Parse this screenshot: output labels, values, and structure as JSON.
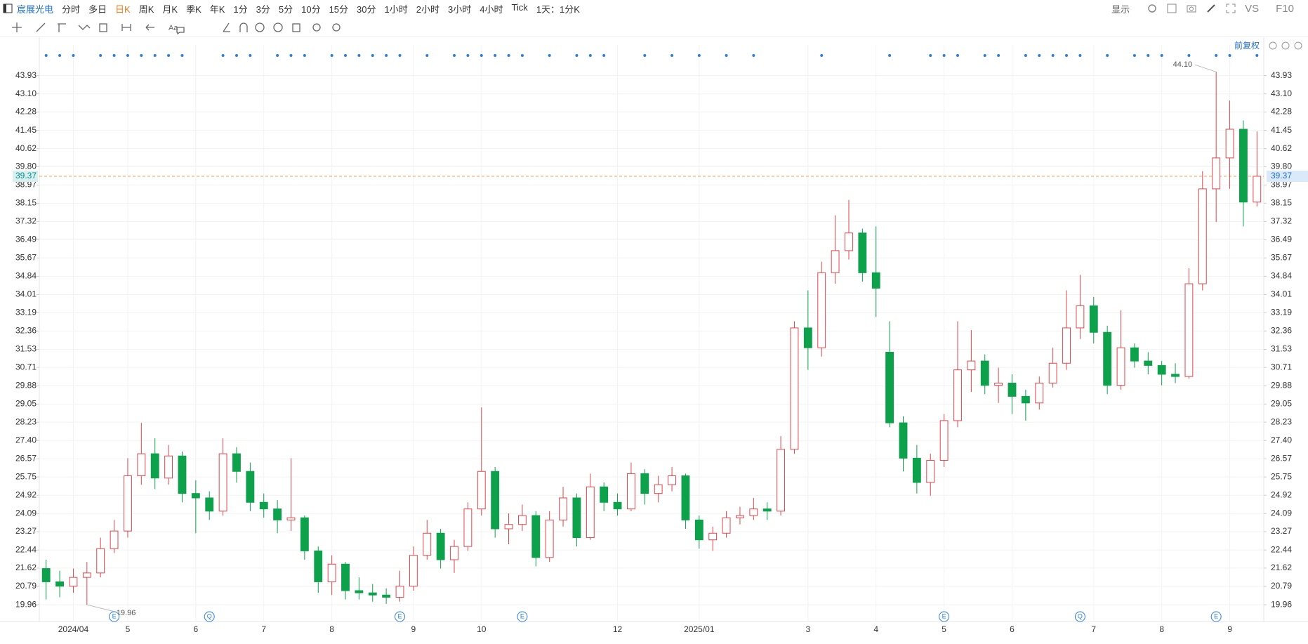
{
  "toolbar": {
    "stock": "宸展光电",
    "periods": [
      "分时",
      "多日",
      "日K",
      "周K",
      "月K",
      "季K",
      "年K",
      "1分",
      "3分",
      "5分",
      "10分",
      "15分",
      "30分",
      "1小时",
      "2小时",
      "3小时",
      "4小时",
      "Tick",
      "1天：1分K"
    ],
    "active": 2,
    "display": "显示",
    "vs": "VS",
    "f10": "F10",
    "adjust": "前复权"
  },
  "chart_data": {
    "type": "candlestick",
    "categories": [
      null,
      null,
      "2024/04",
      null,
      null,
      null,
      "5",
      null,
      null,
      null,
      null,
      "6",
      null,
      null,
      null,
      null,
      "7",
      null,
      null,
      null,
      null,
      "8",
      null,
      null,
      null,
      null,
      null,
      "9",
      null,
      null,
      null,
      null,
      "10",
      null,
      null,
      null,
      null,
      null,
      null,
      null,
      null,
      null,
      "12",
      null,
      null,
      null,
      null,
      null,
      "2025/01",
      null,
      null,
      null,
      null,
      null,
      null,
      null,
      "3",
      null,
      null,
      null,
      null,
      "4",
      null,
      null,
      null,
      null,
      "5",
      null,
      null,
      null,
      null,
      "6",
      null,
      null,
      null,
      null,
      null,
      "7",
      null,
      null,
      null,
      null,
      "8",
      null,
      null,
      null,
      null,
      "9",
      null,
      null
    ],
    "open": [
      21.6,
      21.0,
      20.8,
      21.2,
      21.4,
      22.5,
      23.3,
      25.8,
      26.8,
      25.7,
      26.7,
      25.0,
      24.8,
      24.2,
      26.8,
      26.0,
      24.6,
      24.3,
      23.8,
      23.9,
      22.4,
      21.0,
      21.8,
      20.6,
      20.5,
      20.4,
      20.3,
      20.8,
      22.2,
      23.2,
      22.0,
      22.6,
      24.3,
      26.0,
      23.4,
      23.6,
      24.0,
      22.1,
      23.8,
      24.8,
      23.0,
      25.3,
      24.6,
      24.3,
      25.9,
      25.0,
      25.4,
      25.8,
      23.8,
      22.9,
      23.2,
      23.9,
      24.0,
      24.3,
      24.2,
      27.0,
      32.5,
      31.6,
      35.0,
      36.0,
      36.8,
      35.0,
      31.4,
      28.2,
      26.6,
      25.5,
      26.5,
      28.3,
      30.6,
      31.0,
      29.9,
      30.0,
      29.4,
      29.1,
      30.0,
      30.9,
      32.5,
      33.5,
      32.3,
      29.9,
      31.6,
      31.0,
      30.8,
      30.4,
      30.3,
      34.5,
      38.8,
      40.2,
      41.5,
      38.2
    ],
    "high": [
      22.0,
      21.5,
      21.6,
      21.9,
      23.0,
      23.8,
      26.6,
      28.2,
      27.5,
      27.2,
      26.9,
      25.6,
      25.1,
      27.5,
      27.1,
      26.4,
      25.0,
      24.7,
      26.6,
      24.0,
      22.6,
      22.2,
      21.9,
      21.2,
      20.9,
      20.7,
      21.5,
      22.6,
      23.8,
      23.4,
      22.9,
      24.6,
      28.9,
      26.2,
      24.1,
      24.5,
      24.2,
      24.2,
      25.3,
      25.0,
      25.9,
      25.5,
      25.0,
      26.4,
      26.1,
      25.8,
      26.2,
      25.9,
      24.0,
      23.5,
      24.2,
      24.4,
      24.8,
      24.6,
      27.6,
      32.8,
      34.2,
      35.5,
      37.6,
      38.3,
      37.0,
      37.1,
      32.8,
      28.5,
      27.2,
      26.8,
      28.6,
      32.8,
      32.4,
      31.3,
      30.7,
      30.4,
      29.7,
      30.3,
      31.6,
      34.2,
      34.9,
      33.9,
      32.6,
      33.3,
      31.8,
      31.4,
      31.0,
      30.9,
      35.2,
      39.6,
      44.1,
      42.8,
      41.9,
      41.4
    ],
    "low": [
      20.2,
      20.3,
      20.5,
      19.96,
      21.2,
      22.3,
      23.0,
      25.4,
      25.2,
      25.4,
      24.6,
      23.2,
      23.8,
      24.0,
      25.5,
      24.2,
      23.9,
      23.2,
      23.3,
      22.0,
      20.5,
      20.4,
      20.2,
      20.2,
      20.1,
      20.0,
      20.1,
      20.6,
      22.0,
      21.6,
      21.4,
      22.4,
      24.0,
      23.0,
      22.7,
      23.3,
      21.7,
      21.9,
      23.5,
      22.6,
      22.9,
      24.2,
      24.0,
      24.2,
      24.5,
      24.6,
      25.1,
      23.4,
      22.5,
      22.4,
      23.0,
      23.6,
      23.8,
      23.8,
      24.0,
      26.8,
      30.6,
      31.2,
      34.5,
      35.6,
      34.6,
      33.0,
      28.0,
      26.0,
      25.0,
      24.9,
      26.2,
      28.0,
      29.6,
      29.5,
      29.1,
      28.6,
      28.3,
      28.8,
      29.8,
      30.6,
      32.0,
      31.8,
      29.5,
      29.7,
      30.7,
      30.4,
      29.9,
      30.0,
      30.2,
      34.2,
      37.3,
      38.8,
      37.1,
      38.0
    ],
    "close": [
      21.0,
      20.8,
      21.2,
      21.4,
      22.5,
      23.3,
      25.8,
      26.8,
      25.7,
      26.7,
      25.0,
      24.8,
      24.2,
      26.8,
      26.0,
      24.6,
      24.3,
      23.8,
      23.9,
      22.4,
      21.0,
      21.8,
      20.6,
      20.5,
      20.4,
      20.3,
      20.8,
      22.2,
      23.2,
      22.0,
      22.6,
      24.3,
      26.0,
      23.4,
      23.6,
      24.0,
      22.1,
      23.8,
      24.8,
      23.0,
      25.3,
      24.6,
      24.3,
      25.9,
      25.0,
      25.4,
      25.8,
      23.8,
      22.9,
      23.2,
      23.9,
      24.0,
      24.3,
      24.2,
      27.0,
      32.5,
      31.6,
      35.0,
      36.0,
      36.8,
      35.0,
      34.3,
      28.2,
      26.6,
      25.5,
      26.5,
      28.3,
      30.6,
      31.0,
      29.9,
      30.0,
      29.4,
      29.1,
      30.0,
      30.9,
      32.5,
      33.5,
      32.3,
      29.9,
      31.6,
      31.0,
      30.8,
      30.4,
      30.3,
      34.5,
      38.8,
      40.2,
      41.5,
      38.2,
      39.37
    ],
    "up_color": "#e5454a",
    "down_color": "#0ca14a",
    "ylim": [
      19.2,
      45.0
    ],
    "yticks": [
      19.96,
      20.79,
      21.62,
      22.44,
      23.27,
      24.09,
      24.92,
      25.75,
      26.57,
      {
        "value": 27.4,
        "label": "27.40"
      },
      28.23,
      29.05,
      29.88,
      30.71,
      31.53,
      32.36,
      33.19,
      34.01,
      34.84,
      35.67,
      36.49,
      37.32,
      38.15,
      38.97,
      {
        "value": 39.8,
        "label": "39.80"
      },
      40.62,
      41.45,
      42.28,
      {
        "value": 43.1,
        "label": "43.10"
      },
      43.93
    ],
    "grid": true,
    "last_price": 39.37,
    "max_label": {
      "value": 44.1,
      "label": "44.10"
    },
    "min_label": 19.96,
    "events": [
      {
        "category": 5,
        "label": "E"
      },
      {
        "category": 12,
        "label": "Q"
      },
      {
        "category": 26,
        "label": "E"
      },
      {
        "category": 35,
        "label": "E"
      },
      {
        "category": 66,
        "label": "E"
      },
      {
        "category": 76,
        "label": "Q"
      },
      {
        "category": 86,
        "label": "E"
      }
    ],
    "signal_markers": [
      0,
      1,
      2,
      4,
      5,
      6,
      7,
      8,
      9,
      10,
      13,
      14,
      15,
      17,
      18,
      19,
      21,
      22,
      23,
      24,
      25,
      26,
      28,
      30,
      31,
      32,
      33,
      34,
      35,
      37,
      39,
      40,
      41,
      44,
      46,
      48,
      50,
      52,
      57,
      62,
      65,
      66,
      67,
      69,
      70,
      72,
      73,
      74,
      75,
      76,
      78,
      80,
      81,
      82,
      84,
      86,
      87,
      89
    ]
  }
}
